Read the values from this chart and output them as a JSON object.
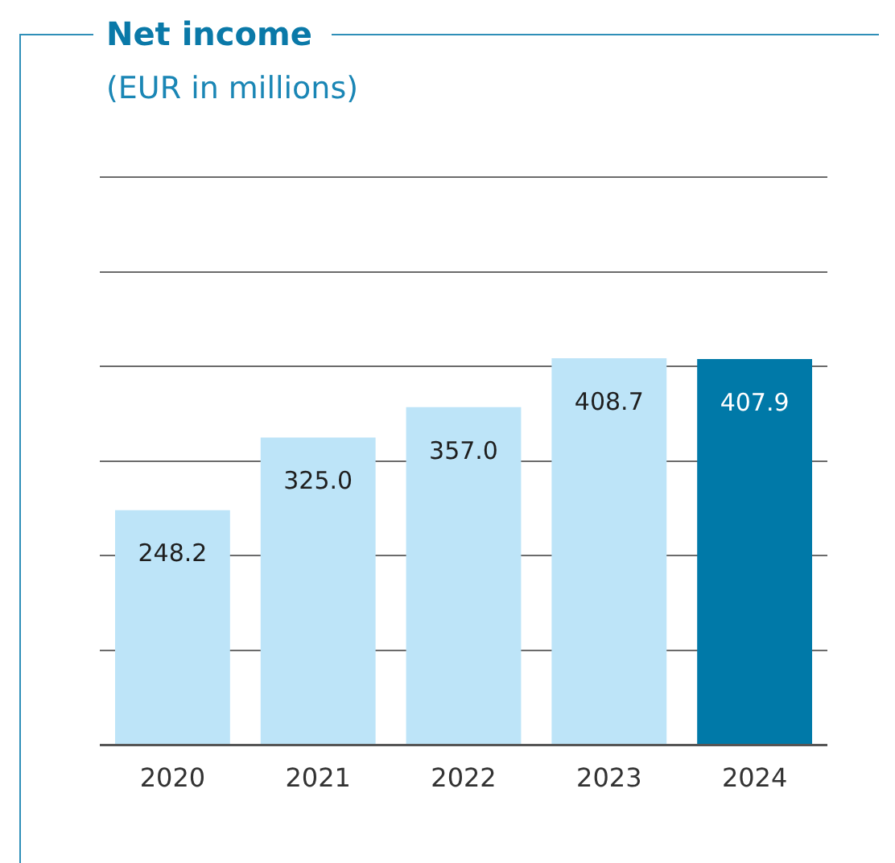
{
  "chart_data": {
    "type": "bar",
    "title": "Net income",
    "subtitle": "(EUR in millions)",
    "categories": [
      "2020",
      "2021",
      "2022",
      "2023",
      "2024"
    ],
    "values": [
      248.2,
      325.0,
      357.0,
      408.7,
      407.9
    ],
    "colors": [
      "#bde4f8",
      "#bde4f8",
      "#bde4f8",
      "#bde4f8",
      "#0079a8"
    ],
    "ylim": [
      0,
      600
    ],
    "yticks": [
      0,
      100,
      200,
      300,
      400,
      500,
      600
    ],
    "value_labels": [
      "248.2",
      "325.0",
      "357.0",
      "408.7",
      "407.9"
    ],
    "grid": "y",
    "tick_labels": "x"
  }
}
